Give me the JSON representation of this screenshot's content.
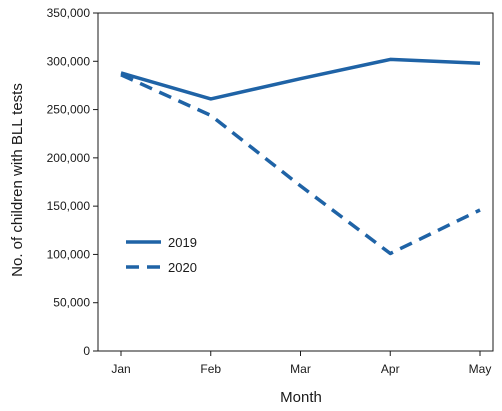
{
  "chart_data": {
    "type": "line",
    "title": "",
    "xlabel": "Month",
    "ylabel": "No. of children with BLL tests",
    "categories": [
      "Jan",
      "Feb",
      "Mar",
      "Apr",
      "May"
    ],
    "y_ticks": [
      0,
      50000,
      100000,
      150000,
      200000,
      250000,
      300000,
      350000
    ],
    "y_tick_labels": [
      "0",
      "50,000",
      "100,000",
      "150,000",
      "200,000",
      "250,000",
      "300,000",
      "350,000"
    ],
    "ylim": [
      0,
      350000
    ],
    "grid": false,
    "legend_position": "left-middle",
    "series": [
      {
        "name": "2019",
        "style": "solid",
        "color": "#1f63a6",
        "values": [
          288000,
          261000,
          282000,
          302000,
          298000
        ]
      },
      {
        "name": "2020",
        "style": "dashed",
        "color": "#1f63a6",
        "values": [
          286000,
          244000,
          171000,
          101000,
          146000
        ]
      }
    ]
  }
}
